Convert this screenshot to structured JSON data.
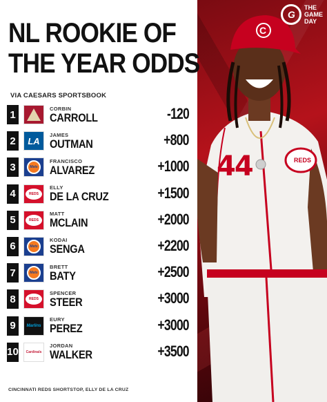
{
  "brand": {
    "mark": "G",
    "line1": "THE",
    "line2": "GAME",
    "line3": "DAY"
  },
  "title": {
    "line1": "NL ROOKIE OF",
    "line2": "THE YEAR ODDS"
  },
  "source": "VIA CAESARS SPORTSBOOK",
  "players": [
    {
      "rank": "1",
      "first": "CORBIN",
      "last": "CARROLL",
      "odds": "-120",
      "team": "dbacks-icon"
    },
    {
      "rank": "2",
      "first": "JAMES",
      "last": "OUTMAN",
      "odds": "+800",
      "team": "dodgers-icon"
    },
    {
      "rank": "3",
      "first": "FRANCISCO",
      "last": "ALVAREZ",
      "odds": "+1000",
      "team": "mets-icon"
    },
    {
      "rank": "4",
      "first": "ELLY",
      "last": "DE LA CRUZ",
      "odds": "+1500",
      "team": "reds-icon"
    },
    {
      "rank": "5",
      "first": "MATT",
      "last": "MCLAIN",
      "odds": "+2000",
      "team": "reds-icon"
    },
    {
      "rank": "6",
      "first": "KODAI",
      "last": "SENGA",
      "odds": "+2200",
      "team": "mets-icon"
    },
    {
      "rank": "7",
      "first": "BRETT",
      "last": "BATY",
      "odds": "+2500",
      "team": "mets-icon"
    },
    {
      "rank": "8",
      "first": "SPENCER",
      "last": "STEER",
      "odds": "+3000",
      "team": "reds-icon"
    },
    {
      "rank": "9",
      "first": "EURY",
      "last": "PEREZ",
      "odds": "+3000",
      "team": "marlins-icon"
    },
    {
      "rank": "10",
      "first": "JORDAN",
      "last": "WALKER",
      "odds": "+3500",
      "team": "cardinals-icon"
    }
  ],
  "team_logo_text": {
    "la": "LA",
    "reds": "REDS",
    "mets": "Mets",
    "marlins": "Marlins",
    "cardinals": "Cardinals"
  },
  "jersey": {
    "number": "44",
    "chest_logo": "REDS",
    "cap_logo": "C"
  },
  "caption": "CINCINNATI REDS SHORTSTOP, ELLY DE LA CRUZ",
  "colors": {
    "reds_red": "#c6011f",
    "text": "#111111",
    "background": "#ffffff"
  }
}
